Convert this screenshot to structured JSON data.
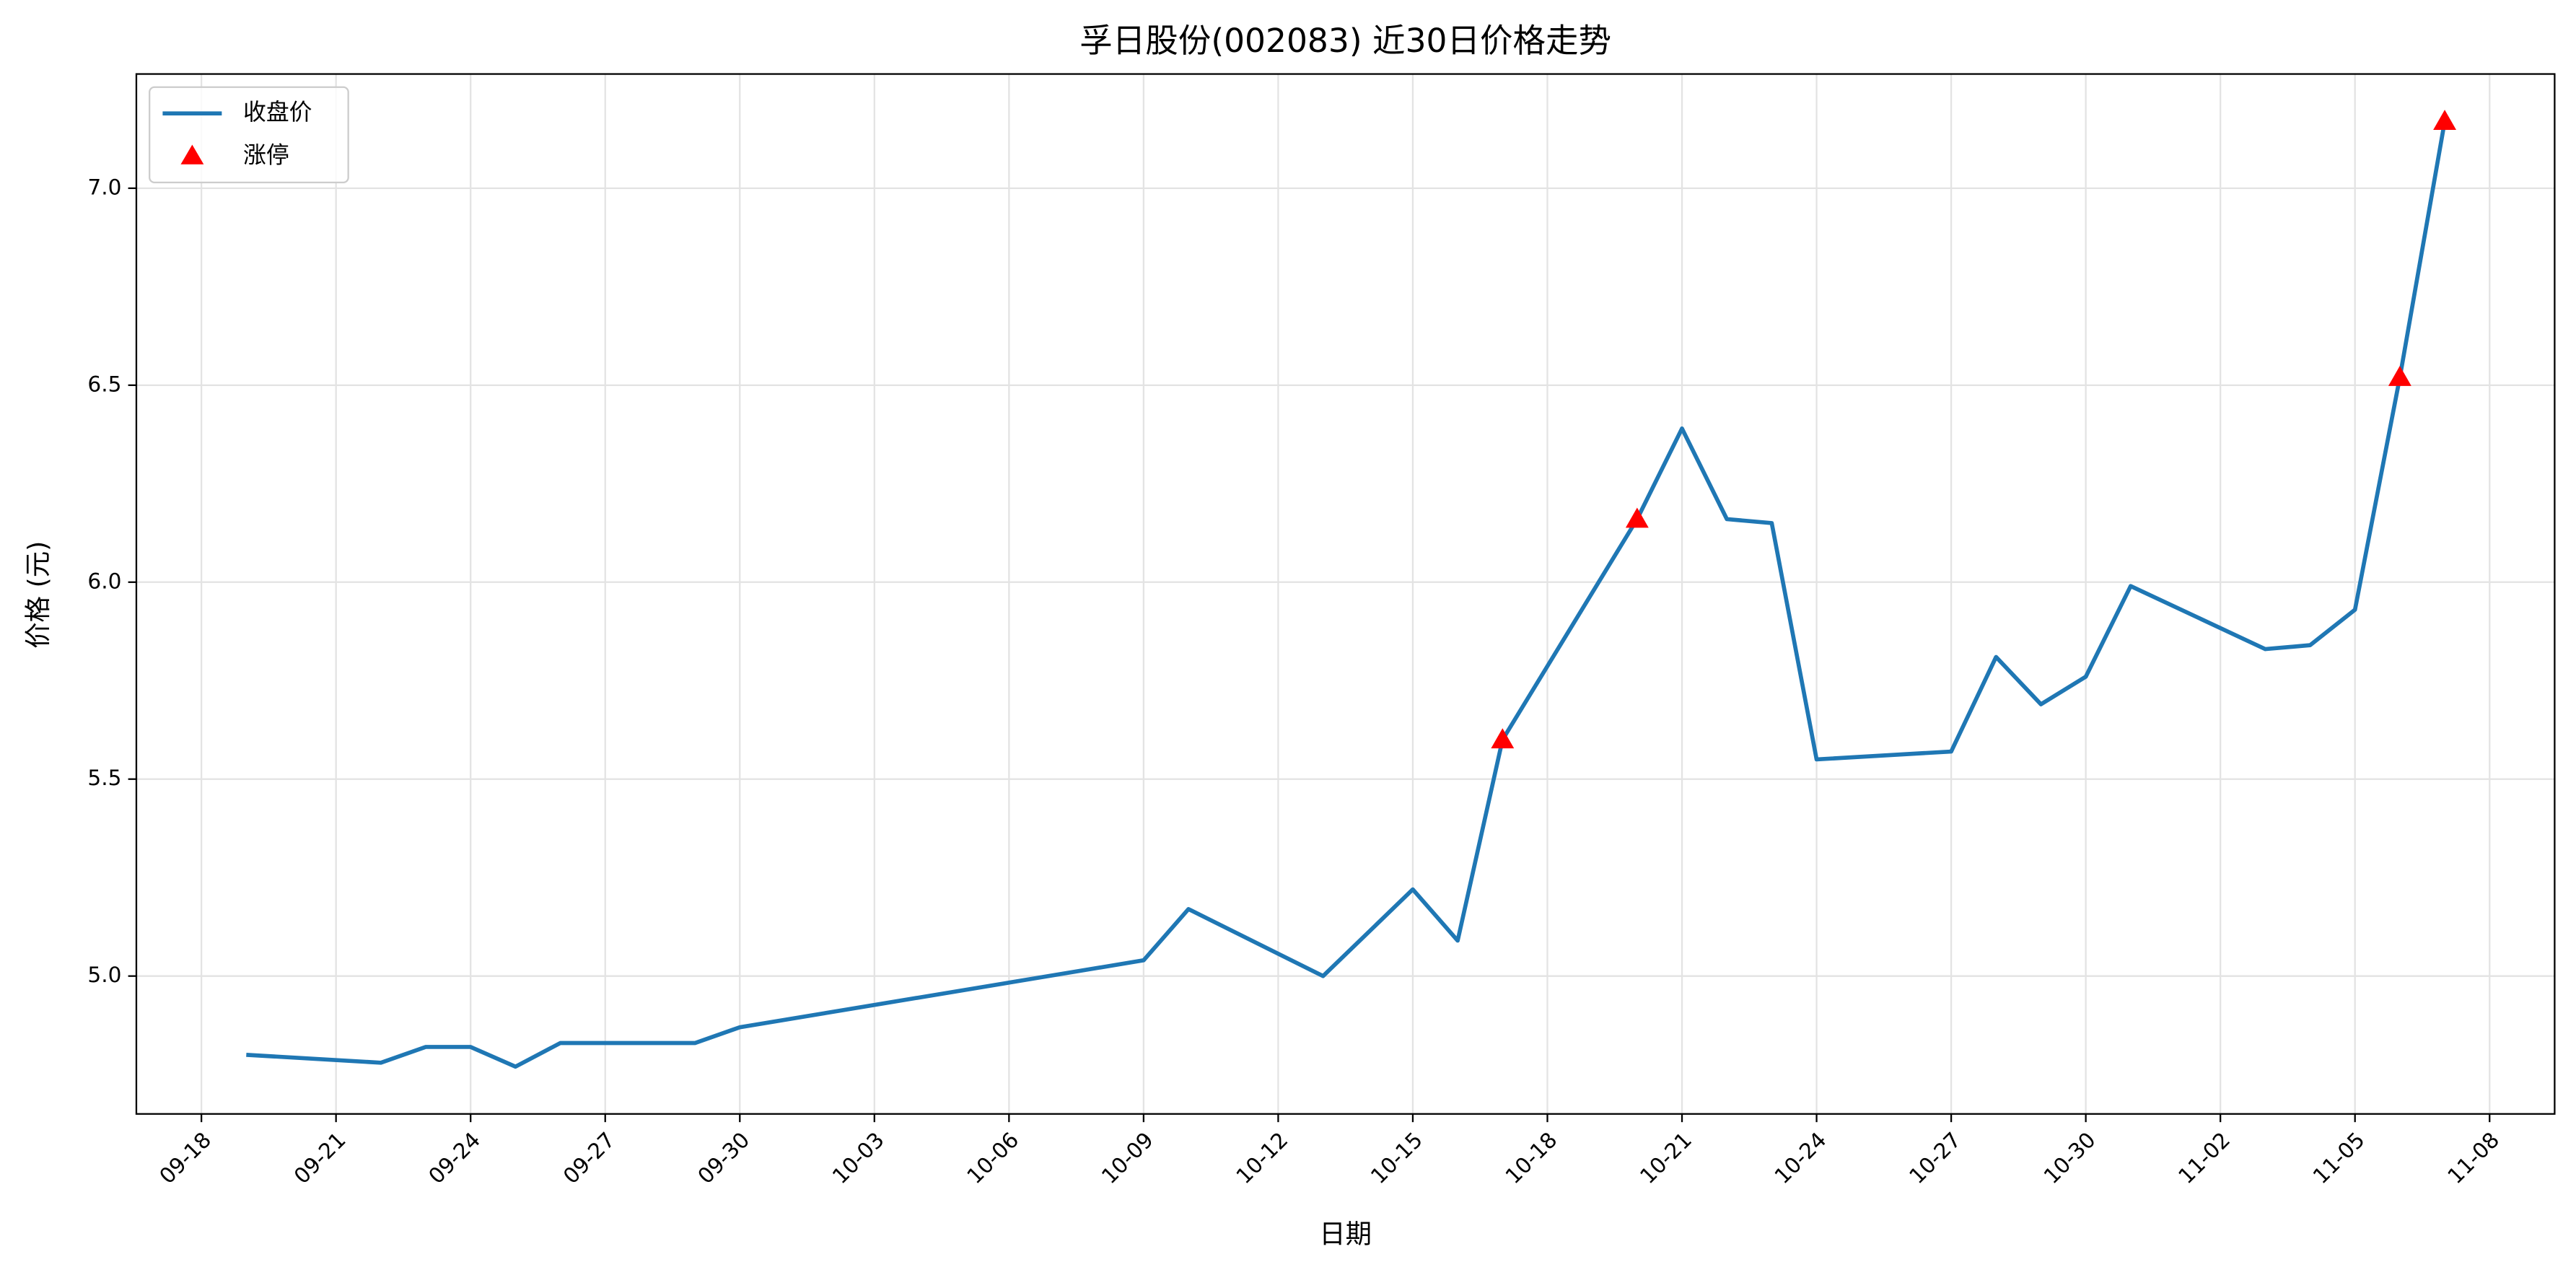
{
  "chart_data": {
    "type": "line",
    "title": "孚日股份(002083) 近30日价格走势",
    "x_label": "日期",
    "y_label": "价格 (元)",
    "x": [
      "09-19",
      "09-22",
      "09-23",
      "09-24",
      "09-25",
      "09-26",
      "09-29",
      "09-30",
      "10-09",
      "10-10",
      "10-13",
      "10-15",
      "10-16",
      "10-17",
      "10-20",
      "10-21",
      "10-22",
      "10-23",
      "10-24",
      "10-27",
      "10-28",
      "10-29",
      "10-30",
      "10-31",
      "11-03",
      "11-04",
      "11-05",
      "11-06",
      "11-07"
    ],
    "series": [
      {
        "name": "收盘价",
        "color": "#1f77b4",
        "type": "line",
        "values": [
          4.8,
          4.78,
          4.82,
          4.82,
          4.77,
          4.83,
          4.83,
          4.87,
          5.04,
          5.17,
          5.0,
          5.22,
          5.09,
          5.6,
          6.16,
          6.39,
          6.16,
          6.15,
          5.55,
          5.57,
          5.81,
          5.69,
          5.76,
          5.99,
          5.83,
          5.84,
          5.93,
          6.52,
          7.17
        ]
      },
      {
        "name": "涨停",
        "color": "#ff0000",
        "type": "scatter",
        "marker": "triangle",
        "x": [
          "10-17",
          "10-20",
          "11-06",
          "11-07"
        ],
        "values": [
          5.6,
          6.16,
          6.52,
          7.17
        ]
      }
    ],
    "xticks": [
      "09-18",
      "09-21",
      "09-24",
      "09-27",
      "09-30",
      "10-03",
      "10-06",
      "10-09",
      "10-12",
      "10-15",
      "10-18",
      "10-21",
      "10-24",
      "10-27",
      "10-30",
      "11-02",
      "11-05",
      "11-08"
    ],
    "ylim": [
      4.65,
      7.29
    ],
    "yticks": [
      {
        "value": 5,
        "label": "5.0"
      },
      {
        "value": 5.5,
        "label": "5.5"
      },
      {
        "value": 6,
        "label": "6.0"
      },
      {
        "value": 6.5,
        "label": "6.5"
      },
      {
        "value": 7,
        "label": "7.0"
      }
    ],
    "grid": true,
    "legend": "upper left"
  }
}
